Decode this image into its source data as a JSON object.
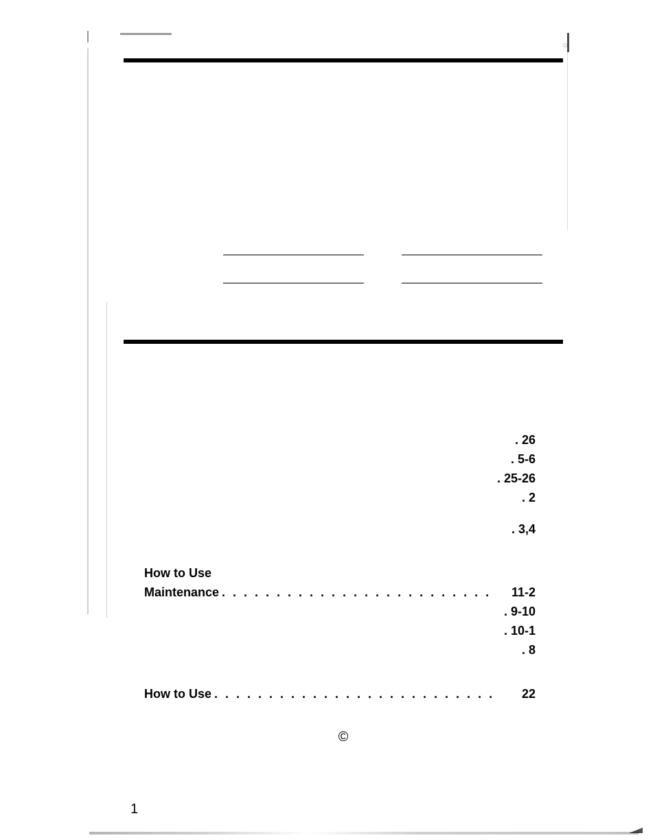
{
  "toc": {
    "group1": [
      {
        "label": "",
        "page": "26",
        "dots": false
      },
      {
        "label": "",
        "page": "5-6",
        "dots": false
      },
      {
        "label": "",
        "page": "25-26",
        "dots": false
      },
      {
        "label": "",
        "page": "2",
        "dots": false
      }
    ],
    "group1b": [
      {
        "label": "",
        "page": "3,4",
        "dots": false
      }
    ],
    "group2_header": "How to Use",
    "group2": [
      {
        "label": "Maintenance",
        "page": "11-2",
        "dots": true
      },
      {
        "label": "",
        "page": "9-10",
        "dots": false
      },
      {
        "label": "",
        "page": "10-1",
        "dots": false
      },
      {
        "label": "",
        "page": "8",
        "dots": false
      }
    ],
    "group3": [
      {
        "label": "How to Use",
        "page": "22",
        "dots": true
      }
    ]
  },
  "copyright_symbol": "©",
  "page_number": "1"
}
